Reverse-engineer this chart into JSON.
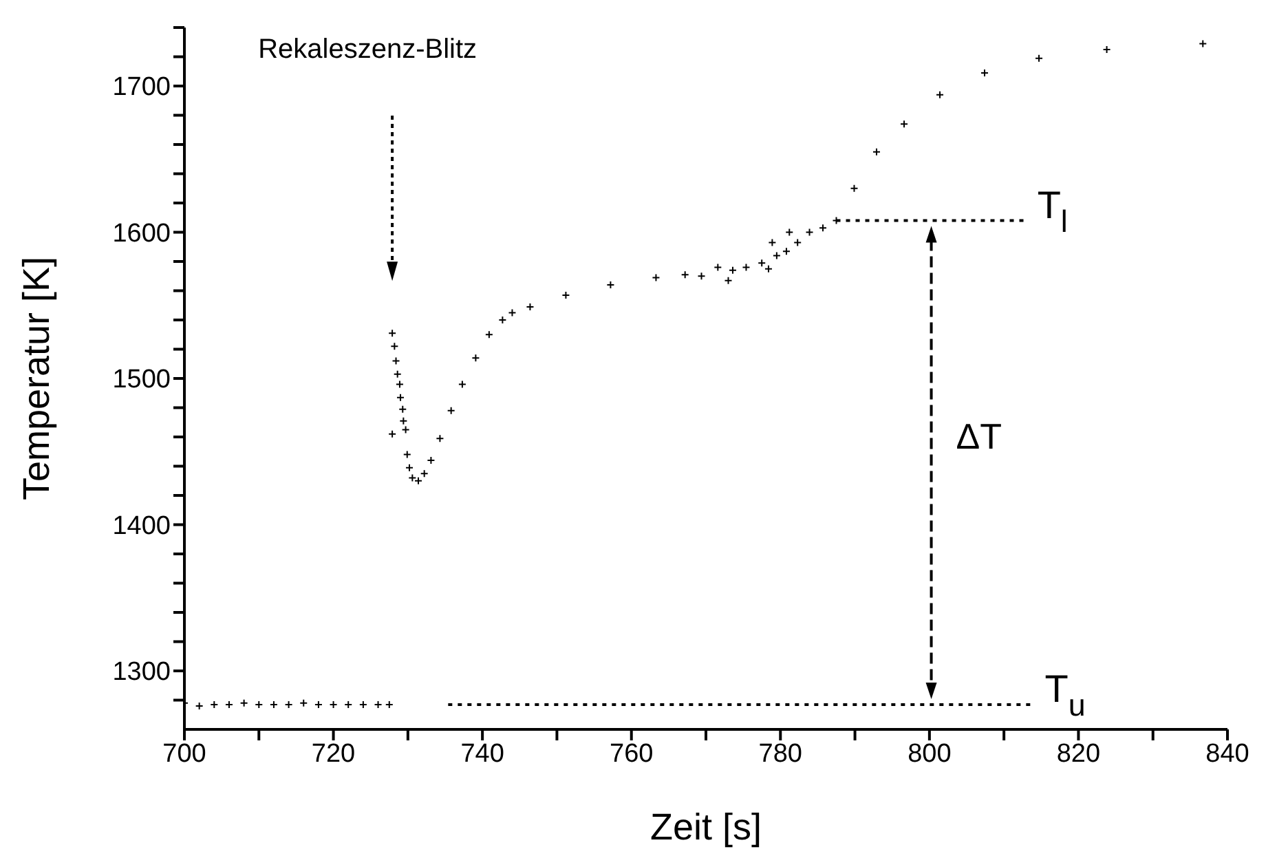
{
  "chart_data": {
    "type": "scatter",
    "xlabel": "Zeit [s]",
    "ylabel": "Temperatur [K]",
    "xlim": [
      700,
      840
    ],
    "ylim": [
      1260,
      1740
    ],
    "xticks": [
      700,
      {
        "value": 710,
        "label": null
      },
      720,
      {
        "value": 730,
        "label": null
      },
      740,
      {
        "value": 750,
        "label": null
      },
      760,
      {
        "value": 770,
        "label": null
      },
      780,
      {
        "value": 790,
        "label": null
      },
      800,
      {
        "value": 810,
        "label": null
      },
      820,
      {
        "value": 830,
        "label": null
      },
      840
    ],
    "yticks": [
      {
        "value": 1280,
        "label": null
      },
      1300,
      {
        "value": 1320,
        "label": null
      },
      {
        "value": 1340,
        "label": null
      },
      {
        "value": 1360,
        "label": null
      },
      {
        "value": 1380,
        "label": null
      },
      1400,
      {
        "value": 1420,
        "label": null
      },
      {
        "value": 1440,
        "label": null
      },
      {
        "value": 1460,
        "label": null
      },
      {
        "value": 1480,
        "label": null
      },
      1500,
      {
        "value": 1520,
        "label": null
      },
      {
        "value": 1540,
        "label": null
      },
      {
        "value": 1560,
        "label": null
      },
      {
        "value": 1580,
        "label": null
      },
      1600,
      {
        "value": 1620,
        "label": null
      },
      {
        "value": 1640,
        "label": null
      },
      {
        "value": 1660,
        "label": null
      },
      {
        "value": 1680,
        "label": null
      },
      1700,
      {
        "value": 1720,
        "label": null
      },
      {
        "value": 1740,
        "label": null
      }
    ],
    "marker": "cross",
    "series": [
      {
        "color": "#000000",
        "x": [
          700,
          702,
          704,
          706,
          708,
          710,
          712,
          714,
          716,
          718,
          720,
          722,
          724,
          726,
          727.5,
          727.9,
          728.2,
          728.4,
          728.6,
          728.9,
          729.0,
          729.3,
          729.4,
          729.7,
          727.9,
          729.9,
          730.2,
          730.6,
          731.4,
          732.2,
          733.1,
          734.3,
          735.8,
          737.3,
          739.1,
          740.9,
          742.7,
          744.0,
          746.4,
          751.2,
          757.2,
          763.3,
          767.2,
          769.4,
          773.0,
          771.6,
          773.6,
          775.4,
          777.5,
          778.4,
          778.9,
          779.5,
          780.8,
          781.2,
          782.3,
          783.9,
          785.7,
          787.5,
          789.9,
          792.9,
          796.6,
          801.4,
          807.4,
          814.7,
          823.8,
          836.7
        ],
        "values": [
          1278,
          1276,
          1277,
          1277,
          1278,
          1277,
          1277,
          1277,
          1278,
          1277,
          1277,
          1277,
          1277,
          1277,
          1277,
          1531,
          1522,
          1512,
          1503,
          1496,
          1487,
          1479,
          1471,
          1465,
          1462,
          1448,
          1439,
          1432,
          1430,
          1435,
          1444,
          1459,
          1478,
          1496,
          1514,
          1530,
          1540,
          1545,
          1549,
          1557,
          1564,
          1569,
          1571,
          1570,
          1567,
          1576,
          1574,
          1576,
          1579,
          1575,
          1593,
          1584,
          1587,
          1600,
          1593,
          1600,
          1603,
          1608,
          1630,
          1655,
          1674,
          1694,
          1709,
          1719,
          1725,
          1729
        ]
      },
      {
        "type": "line",
        "marker": "none",
        "line_style": "dotted",
        "color": "#000000",
        "x": [
          787.5,
          813
        ],
        "values": [
          1608,
          1608
        ]
      },
      {
        "type": "line",
        "marker": "none",
        "line_style": "dotted",
        "color": "#000000",
        "x": [
          735.4,
          814
        ],
        "values": [
          1277,
          1277
        ]
      }
    ],
    "annotations": [
      "Rekaleszenz-Blitz",
      "ΔT",
      {
        "text": "T$_{l}$",
        "x": 813,
        "y": 1608
      },
      {
        "text": "T$_{u}$",
        "x": 814,
        "y": 1277
      }
    ]
  }
}
